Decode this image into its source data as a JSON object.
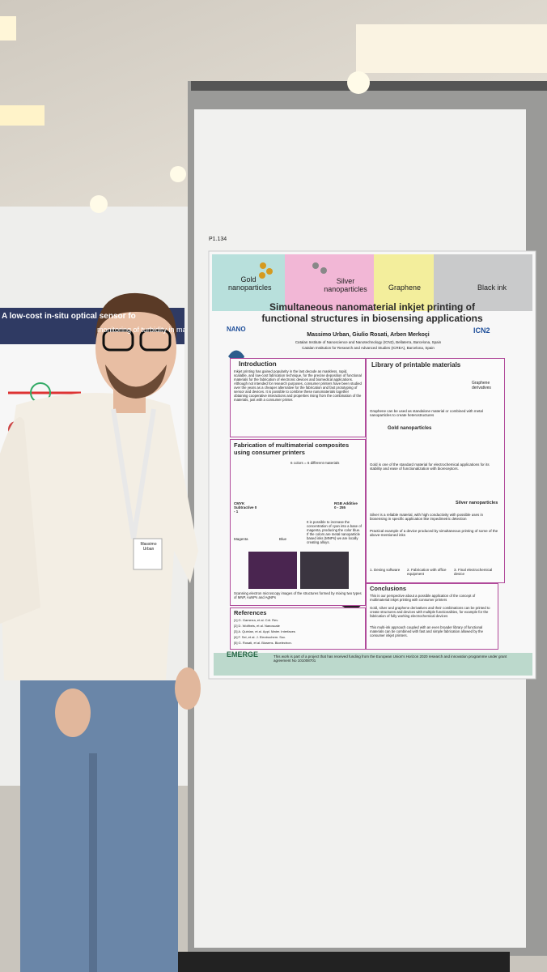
{
  "left_poster": {
    "title": "A low-cost in-situ optical sensor fo",
    "subtitle": "monitoring of turbidity in ma"
  },
  "board_label": "P1.134",
  "badge": "Massimo Urban",
  "poster": {
    "materials": [
      "Gold nanoparticles",
      "Silver nanoparticles",
      "Graphene",
      "Black ink"
    ],
    "title": "Simultaneous nanomaterial inkjet printing of functional structures in biosensing applications",
    "authors": "Massimo Urban, Giulio Rosati, Arben Merkoçi",
    "affiliations": [
      "Catalan Institute of Nanoscience and Nanotechnology (ICN2), Bellaterra, Barcelona, Spain",
      "Catalan Institution for Research and Advanced Studies (ICREA), Barcelona, Spain"
    ],
    "logos": [
      "NANO",
      "ICN2"
    ],
    "introduction": {
      "heading": "Introduction",
      "text": "Inkjet printing has gained popularity in the last decade as maskless, rapid, scalable, and low-cost fabrication technique, for the precise deposition of functional materials for the fabrication of electronic devices and biomedical applications. Although not intended for research purposes, consumer printers have been studied over the years as a cheaper alternative for the fabrication and fast prototyping of sensor and devices. It is possible to combine these nanomaterials together obtaining cooperative interactions and properties rising from the combination of the materials, just with a consumer printer."
    },
    "library": {
      "heading": "Library of printable materials",
      "items": [
        "Graphene derivatives",
        "Gold nanoparticles",
        "Silver nanoparticles"
      ],
      "notes": [
        "Graphene can be used as standalone material or combined with metal nanoparticles to create heterostructures",
        "Gold is one of the standard material for electrochemical applications for its stability and ease of functionalization with bioreceptors.",
        "Silver is a reliable material, with high conductivity with possible uses in biosensing in specific application like impedimetric detection",
        "Practical example of a device produced by simultaneous printing of some of the above-mentioned inks"
      ],
      "steps": [
        "1. Desing software",
        "2. Fabrication with office equipment",
        "3. Final electrochemical device"
      ]
    },
    "fabrication": {
      "heading": "Fabrication of multimaterial composites using consumer printers",
      "labels": [
        "6 colors = 6 different materials",
        "CMYK Subtractive 0 - 1",
        "RGB Additive 0 - 255",
        "Magenta",
        "Blue"
      ],
      "text": "It is possible to increase the concentration of cyan into a base of magenta, producing the color blue. If the colors are metal nanoparticle based inks (MNPs) we are locally creating alloys.",
      "caption": "Scanning electron microscopy images of the structures formed by mixing two types of MNP, AuNPs and AgNPs"
    },
    "references": {
      "heading": "References",
      "items": [
        "[1] G. Gamerra, et al. Crit. Rev.",
        "[2] D. Wolfbeis, et al. Nanoscale",
        "[3] A. Quinlan, et al. Appl. Mater. Interfaces",
        "[4] F. Sei, et al. J. Electrochem. Soc.",
        "[5] G. Rosati, et al. Biosens. Bioelectron."
      ]
    },
    "conclusions": {
      "heading": "Conclusions",
      "items": [
        "This is our perspective about a possible application of the concept of multimaterial inkjet printing with consumer printers",
        "Gold, silver and graphene derivatives and their combinations can be printed to create structures and devices with multiple functionalities, for example for the fabrication of fully working electrochemical devices",
        "This multi-ink approach coupled with an even broader library of functional materials can be combined with fast and simple fabrication allowed by the consumer inkjet printers."
      ]
    },
    "footer": {
      "logo": "EMERGE",
      "text": "This work is part of a project that has received funding from the European Union's Horizon 2020 research and innovation programme under grant agreement No 101008701"
    }
  }
}
